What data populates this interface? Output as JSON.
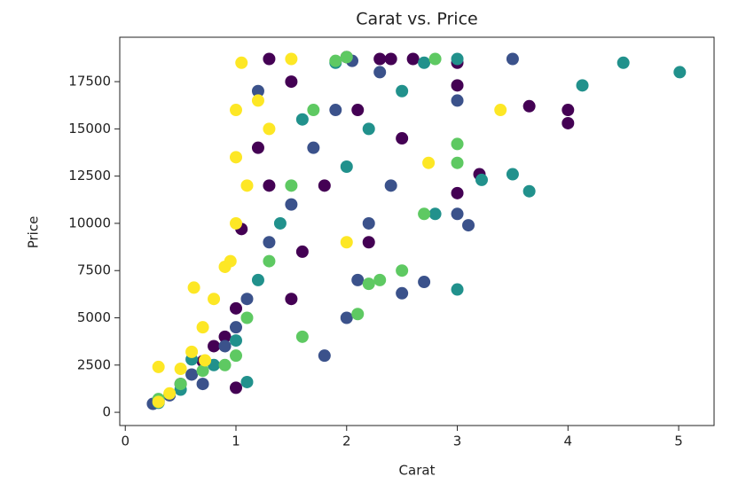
{
  "chart_data": {
    "type": "scatter",
    "title": "Carat vs. Price",
    "x_label": "Carat",
    "y_label": "Price",
    "xlim": [
      -0.05,
      5.32
    ],
    "ylim": [
      -700,
      19850
    ],
    "xticks": [
      0,
      1,
      2,
      3,
      4,
      5
    ],
    "yticks": [
      0,
      2500,
      5000,
      7500,
      10000,
      12500,
      15000,
      17500
    ],
    "series": [
      {
        "color": "#440154",
        "x": [
          0.3,
          0.5,
          0.7,
          0.9,
          1.0,
          1.05,
          1.2,
          1.3,
          1.5,
          1.6,
          1.8,
          2.0,
          2.1,
          2.2,
          2.3,
          2.5,
          2.6,
          3.0,
          3.0,
          3.0,
          3.65,
          4.0,
          4.0,
          3.2,
          1.0,
          1.3,
          1.5,
          2.4,
          0.8
        ],
        "values": [
          600,
          1500,
          2700,
          4000,
          1300,
          9700,
          14000,
          18700,
          17500,
          8500,
          12000,
          18800,
          16000,
          9000,
          18700,
          14500,
          18700,
          18500,
          11600,
          17300,
          16200,
          16000,
          15300,
          12600,
          5500,
          12000,
          6000,
          18700,
          3500
        ]
      },
      {
        "color": "#3b528b",
        "x": [
          0.25,
          0.4,
          0.6,
          0.9,
          1.0,
          1.1,
          1.3,
          1.5,
          1.7,
          1.9,
          2.0,
          2.1,
          2.2,
          2.4,
          2.5,
          2.7,
          3.0,
          3.0,
          3.1,
          3.5,
          2.05,
          1.8,
          1.2,
          0.7,
          2.3
        ],
        "values": [
          450,
          900,
          2000,
          3500,
          4500,
          6000,
          9000,
          11000,
          14000,
          16000,
          5000,
          7000,
          10000,
          12000,
          6300,
          6900,
          16500,
          10500,
          9900,
          18700,
          18600,
          3000,
          17000,
          1500,
          18000
        ]
      },
      {
        "color": "#21918c",
        "x": [
          0.3,
          0.5,
          0.8,
          1.0,
          1.2,
          1.4,
          1.6,
          1.9,
          2.0,
          2.2,
          2.5,
          2.7,
          3.0,
          3.0,
          3.5,
          3.65,
          4.13,
          4.5,
          5.01,
          3.22,
          2.8,
          1.1,
          0.6
        ],
        "values": [
          500,
          1200,
          2500,
          3800,
          7000,
          10000,
          15500,
          18500,
          13000,
          15000,
          17000,
          18500,
          6500,
          18700,
          12600,
          11700,
          17300,
          18500,
          18000,
          12300,
          10500,
          1600,
          2800
        ]
      },
      {
        "color": "#5ec962",
        "x": [
          0.3,
          0.5,
          0.7,
          1.0,
          1.1,
          1.3,
          1.5,
          1.7,
          1.9,
          2.0,
          2.1,
          2.3,
          2.5,
          2.7,
          2.8,
          3.0,
          3.0,
          2.2,
          1.6,
          0.9
        ],
        "values": [
          700,
          1500,
          2200,
          3000,
          5000,
          8000,
          12000,
          16000,
          18600,
          18800,
          5200,
          7000,
          7500,
          10500,
          18700,
          14200,
          13200,
          6800,
          4000,
          2500
        ]
      },
      {
        "color": "#fde725",
        "x": [
          0.3,
          0.4,
          0.5,
          0.6,
          0.7,
          0.8,
          0.9,
          1.0,
          1.0,
          1.0,
          1.05,
          1.1,
          1.2,
          0.3,
          0.62,
          0.72,
          1.5,
          2.0,
          3.39,
          2.74,
          1.3,
          0.95
        ],
        "values": [
          550,
          1000,
          2300,
          3200,
          4500,
          6000,
          7700,
          10000,
          13500,
          16000,
          18500,
          12000,
          16500,
          2400,
          6600,
          2750,
          18700,
          9000,
          16000,
          13200,
          15000,
          8000
        ]
      }
    ]
  }
}
